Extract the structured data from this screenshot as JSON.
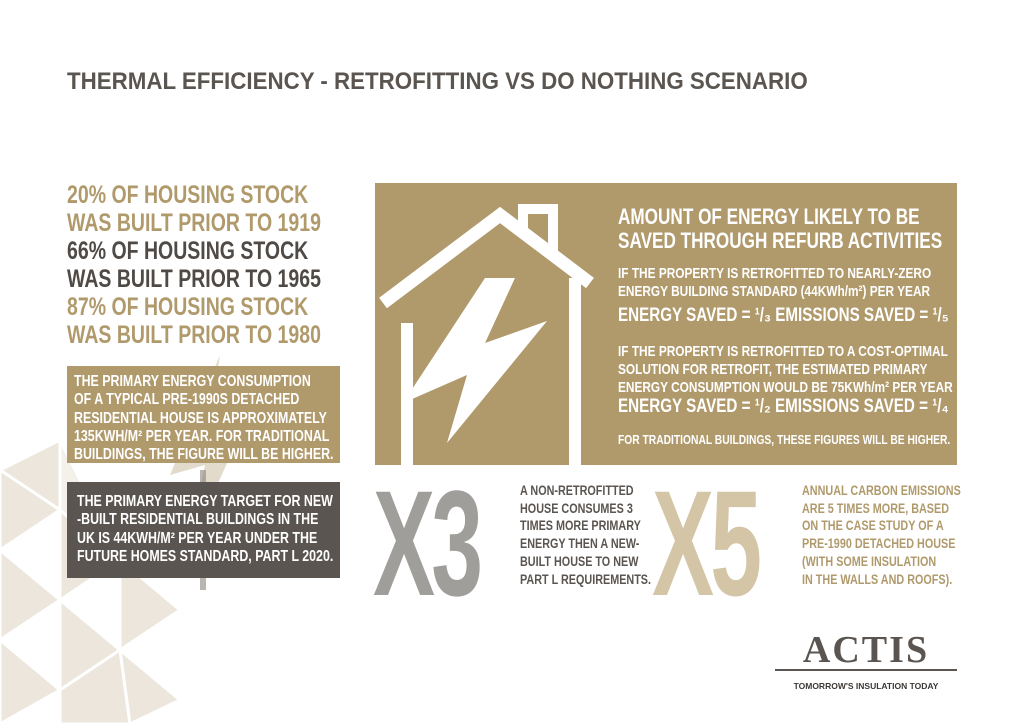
{
  "title": "THERMAL EFFICIENCY - RETROFITTING VS DO NOTHING SCENARIO",
  "stats": [
    {
      "line1": "20% OF HOUSING STOCK",
      "line2": "WAS BUILT PRIOR TO 1919",
      "color": "#b09a6c"
    },
    {
      "line1": "66% OF HOUSING STOCK",
      "line2": "WAS BUILT PRIOR TO 1965",
      "color": "#4f4a45"
    },
    {
      "line1": "87% OF HOUSING STOCK",
      "line2": "WAS BUILT PRIOR TO 1980",
      "color": "#b09a6c"
    }
  ],
  "consumption_box": [
    "THE PRIMARY ENERGY CONSUMPTION",
    "OF A TYPICAL PRE-1990S DETACHED",
    "RESIDENTIAL HOUSE IS APPROXIMATELY",
    "135KWH/M² PER YEAR. FOR TRADITIONAL",
    "BUILDINGS, THE FIGURE WILL BE HIGHER."
  ],
  "target_box": [
    "THE PRIMARY ENERGY TARGET FOR NEW",
    "-BUILT RESIDENTIAL BUILDINGS IN THE",
    "UK IS 44KWH/M² PER YEAR UNDER THE",
    "FUTURE HOMES STANDARD, PART L 2020."
  ],
  "savings": {
    "title": [
      "AMOUNT OF ENERGY LIKELY TO BE",
      "SAVED THROUGH REFURB ACTIVITIES"
    ],
    "scenario1": [
      "IF THE PROPERTY IS RETROFITTED TO NEARLY-ZERO",
      "ENERGY BUILDING STANDARD (44KWh/m²) PER YEAR"
    ],
    "result1": "ENERGY SAVED = ¹/₃  EMISSIONS SAVED = ¹/₅",
    "scenario2": [
      "IF THE PROPERTY IS RETROFITTED TO A COST-OPTIMAL",
      "SOLUTION FOR RETROFIT, THE ESTIMATED PRIMARY",
      "ENERGY CONSUMPTION WOULD BE 75KWh/m² PER YEAR"
    ],
    "result2": "ENERGY SAVED = ¹/₂  EMISSIONS SAVED = ¹/₄",
    "note": "FOR TRADITIONAL BUILDINGS, THESE FIGURES WILL BE HIGHER."
  },
  "x3": {
    "figure": "X3",
    "text": [
      "A NON-RETROFITTED",
      "HOUSE CONSUMES 3",
      "TIMES MORE PRIMARY",
      "ENERGY THEN A NEW-",
      "BUILT HOUSE TO NEW",
      "PART L REQUIREMENTS."
    ]
  },
  "x5": {
    "figure": "X5",
    "text": [
      "ANNUAL CARBON EMISSIONS",
      "ARE 5 TIMES MORE, BASED",
      "ON THE CASE STUDY OF A",
      "PRE-1990 DETACHED HOUSE",
      "(WITH SOME INSULATION",
      "IN THE WALLS AND ROOFS)."
    ]
  },
  "logo": {
    "name": "ACTIS",
    "tagline": "TOMORROW'S INSULATION TODAY"
  },
  "colors": {
    "gold": "#b09a6c",
    "dark": "#5a5550",
    "grey": "#a09e9b",
    "beige": "#d4c5a6"
  },
  "icons": [
    "house-lightning-icon",
    "lightning-watermark-icon",
    "triangle-pattern"
  ]
}
